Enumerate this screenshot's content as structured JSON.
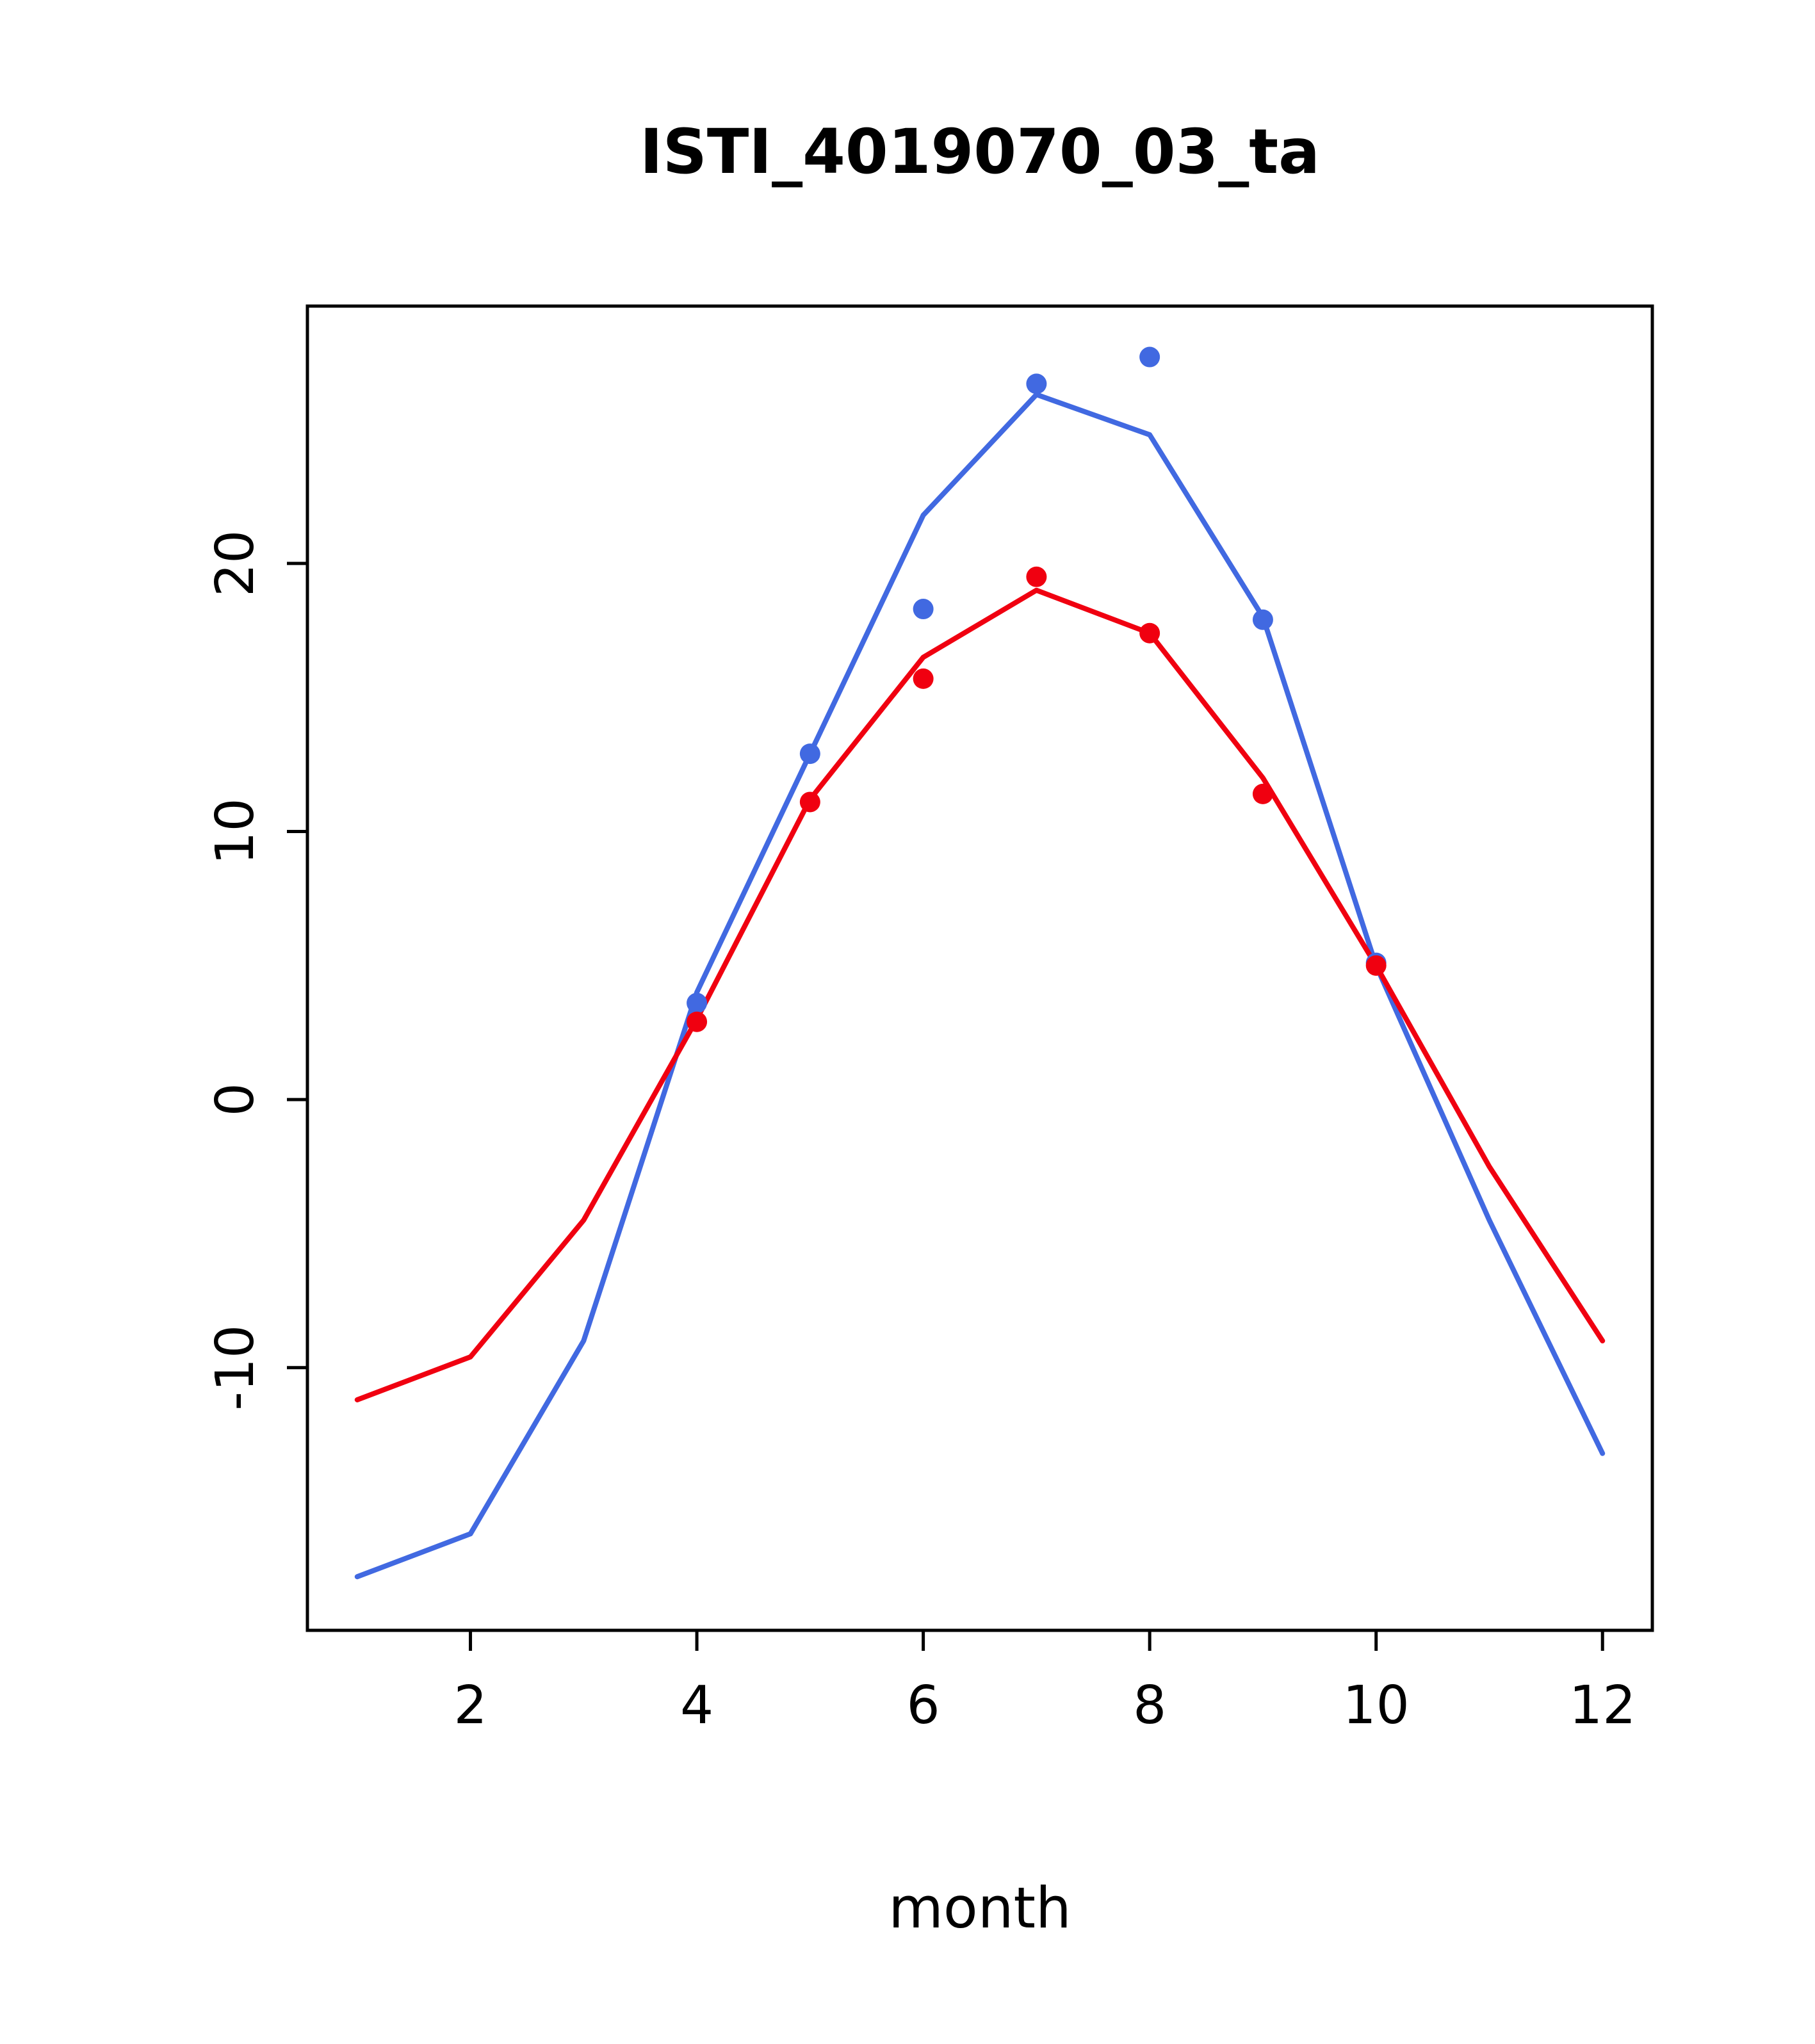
{
  "title": "ISTI_4019070_03_ta",
  "chart_data": {
    "type": "line",
    "title": "ISTI_4019070_03_ta",
    "xlabel": "month",
    "ylabel": "",
    "x": [
      1,
      2,
      3,
      4,
      5,
      6,
      7,
      8,
      9,
      10,
      11,
      12
    ],
    "xlim": [
      0.56,
      12.44
    ],
    "ylim": [
      -19.8,
      29.6
    ],
    "xticks": [
      2,
      4,
      6,
      8,
      10,
      12
    ],
    "yticks": [
      -10,
      0,
      10,
      20
    ],
    "grid": false,
    "legend": "none",
    "series": [
      {
        "name": "blue-series",
        "color": "#4169E1",
        "values": [
          -17.8,
          -16.2,
          -9.0,
          4.0,
          12.9,
          21.8,
          26.3,
          24.8,
          18.0,
          5.0,
          -4.5,
          -13.2
        ]
      },
      {
        "name": "red-series",
        "color": "#F00010",
        "values": [
          -11.2,
          -9.6,
          -4.5,
          3.0,
          11.2,
          16.5,
          19.0,
          17.4,
          12.0,
          5.0,
          -2.5,
          -9.0
        ]
      }
    ],
    "points": [
      {
        "name": "blue-points",
        "color": "#4169E1",
        "x": [
          4,
          5,
          6,
          7,
          8,
          9,
          10
        ],
        "values": [
          3.6,
          12.9,
          18.3,
          26.7,
          27.7,
          17.9,
          5.1
        ]
      },
      {
        "name": "red-points",
        "color": "#F00010",
        "x": [
          4,
          5,
          6,
          7,
          8,
          9,
          10
        ],
        "values": [
          2.9,
          11.1,
          15.7,
          19.5,
          17.4,
          11.4,
          5.0
        ]
      }
    ]
  }
}
